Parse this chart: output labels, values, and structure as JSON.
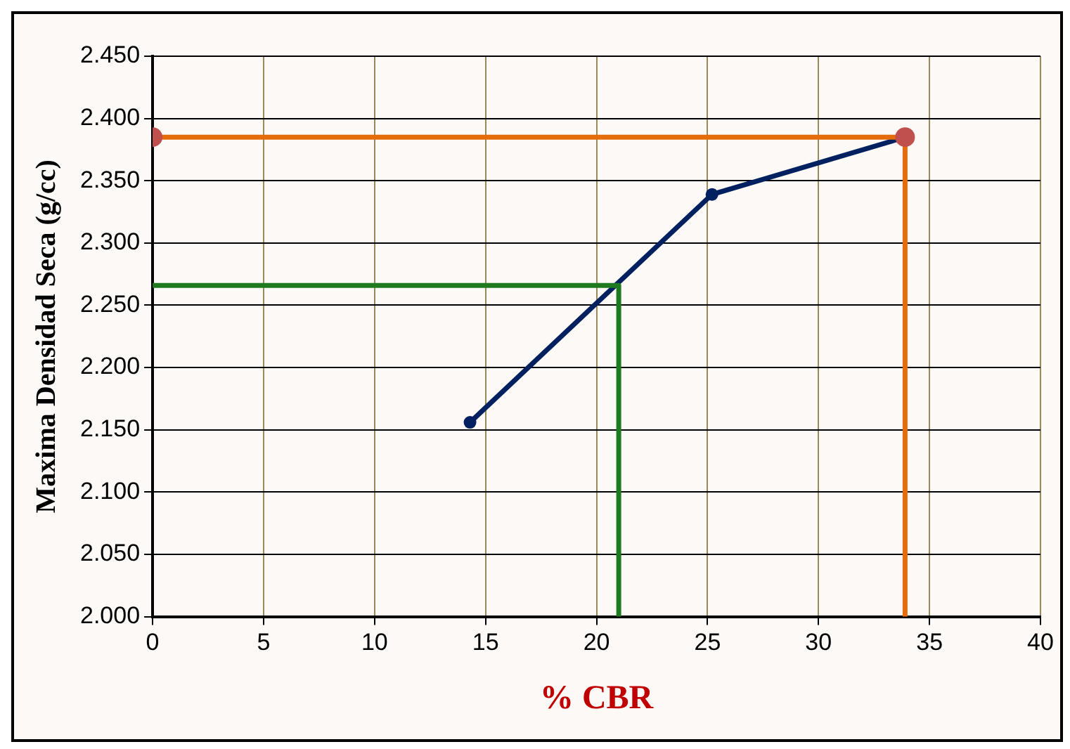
{
  "chart_data": {
    "type": "line",
    "xlabel": "% CBR",
    "ylabel": "Maxima Densidad Seca (g/cc)",
    "xlim": [
      0,
      40
    ],
    "xticks": [
      0,
      5,
      10,
      15,
      20,
      25,
      30,
      35,
      40
    ],
    "ylim": [
      2.0,
      2.45
    ],
    "yticks": [
      {
        "value": 2.0,
        "label": "2.000"
      },
      {
        "value": 2.05,
        "label": "2.050"
      },
      {
        "value": 2.1,
        "label": "2.100"
      },
      {
        "value": 2.15,
        "label": "2.150"
      },
      {
        "value": 2.2,
        "label": "2.200"
      },
      {
        "value": 2.25,
        "label": "2.250"
      },
      {
        "value": 2.3,
        "label": "2.300"
      },
      {
        "value": 2.35,
        "label": "2.350"
      },
      {
        "value": 2.4,
        "label": "2.400"
      },
      {
        "value": 2.45,
        "label": "2.450"
      }
    ],
    "grid": true,
    "legend": false,
    "series": [
      {
        "type": "line",
        "color": "#e46c0a",
        "x": [
          0,
          33.9,
          33.9
        ],
        "values": [
          2.385,
          2.385,
          2.0
        ],
        "marker": "none"
      },
      {
        "type": "line",
        "color": "#1e7a1e",
        "x": [
          0,
          21,
          21
        ],
        "values": [
          2.266,
          2.266,
          2.0
        ],
        "marker": "none"
      },
      {
        "type": "line",
        "color": "#002060",
        "x": [
          14.3,
          25.2,
          33.9
        ],
        "values": [
          2.156,
          2.339,
          2.385
        ],
        "marker": "circle"
      },
      {
        "type": "scatter",
        "color": "#c0504d",
        "x": [
          0,
          33.9
        ],
        "values": [
          2.385,
          2.385
        ],
        "marker": "circle"
      }
    ]
  }
}
